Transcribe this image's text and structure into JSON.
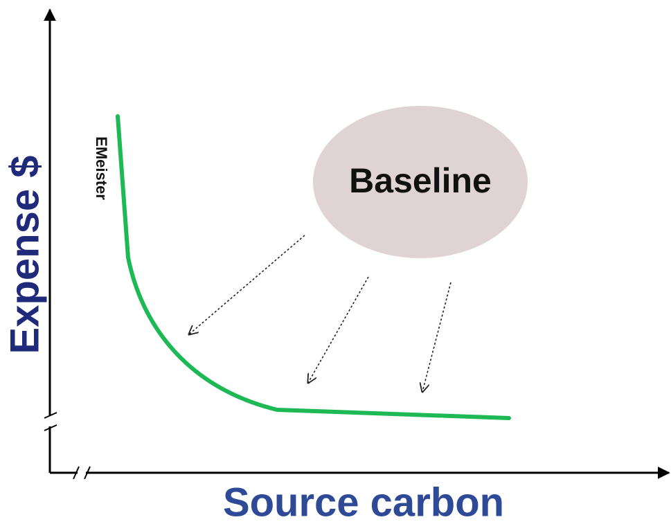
{
  "y_axis_label": "Expense $",
  "x_axis_label": "Source carbon",
  "curve_label": "EMeister",
  "bubble_label": "Baseline"
}
